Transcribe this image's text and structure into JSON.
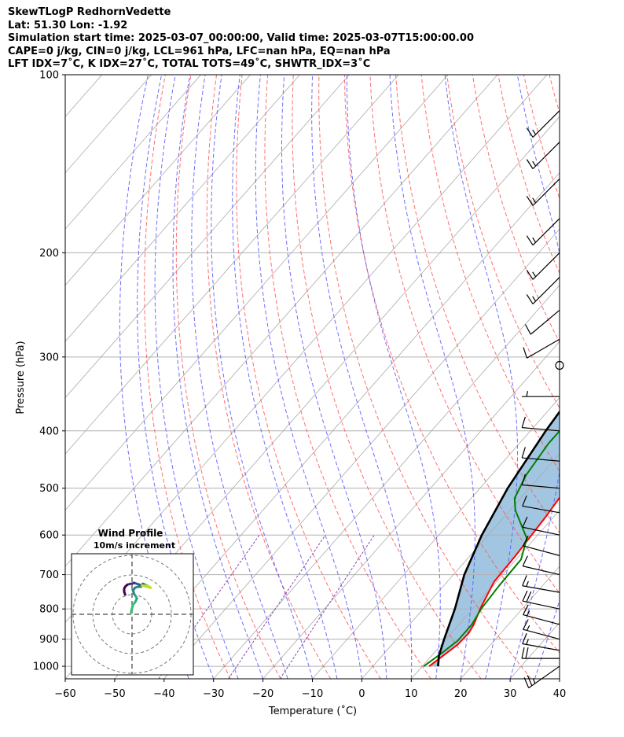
{
  "header": {
    "line1": "SkewTLogP RedhornVedette",
    "line2": "Lat: 51.30   Lon: -1.92",
    "line3": "Simulation start time: 2025-03-07_00:00:00, Valid time: 2025-03-07T15:00:00.00",
    "line4": "CAPE=0 j/kg, CIN=0 j/kg, LCL=961 hPa, LFC=nan hPa, EQ=nan hPa",
    "line5": "LFT IDX=7˚C, K IDX=27˚C, TOTAL TOTS=49˚C, SHWTR_IDX=3˚C"
  },
  "chart_data": {
    "type": "line",
    "xlabel": "Temperature (˚C)",
    "ylabel": "Pressure (hPa)",
    "xlim": [
      -60,
      40
    ],
    "ylim": [
      1040,
      100
    ],
    "x_ticks": [
      -60,
      -50,
      -40,
      -30,
      -20,
      -10,
      0,
      10,
      20,
      30,
      40
    ],
    "x_tick_labels": [
      "−60",
      "−50",
      "−40",
      "−30",
      "−20",
      "−10",
      "0",
      "10",
      "20",
      "30",
      "40"
    ],
    "y_ticks": [
      100,
      200,
      300,
      400,
      500,
      600,
      700,
      800,
      900,
      1000
    ],
    "y_tick_labels": [
      "100",
      "200",
      "300",
      "400",
      "500",
      "600",
      "700",
      "800",
      "900",
      "1000"
    ],
    "skew": "skew-T log-P",
    "grid": true,
    "colors": {
      "temperature": "#ff0000",
      "dewpoint": "#008000",
      "parcel": "#000000",
      "cape_fill": "#7aaed4",
      "dry_adiabat": "#ff5555",
      "moist_adiabat": "#5555ff",
      "mixing_ratio": "#8e44ad",
      "isotherm": "#aaaaaa",
      "barb": "#000000"
    },
    "series": [
      {
        "key": "temperature",
        "points": [
          [
            11.4,
            100
          ],
          [
            10.4,
            120
          ],
          [
            8.7,
            145
          ],
          [
            5.9,
            165
          ],
          [
            3.0,
            185
          ],
          [
            -1.2,
            200
          ],
          [
            -3.8,
            212
          ],
          [
            -5.6,
            232
          ],
          [
            -6.3,
            263
          ],
          [
            -4.8,
            292
          ],
          [
            -2.0,
            335
          ],
          [
            0.0,
            372
          ],
          [
            2.5,
            410
          ],
          [
            5.5,
            460
          ],
          [
            7.5,
            500
          ],
          [
            8.4,
            560
          ],
          [
            9.2,
            650
          ],
          [
            9.5,
            720
          ],
          [
            11.5,
            800
          ],
          [
            13.0,
            850
          ],
          [
            13.5,
            880
          ],
          [
            13.3,
            920
          ],
          [
            11.4,
            1000
          ]
        ]
      },
      {
        "key": "dewpoint",
        "points": [
          [
            -10.3,
            100
          ],
          [
            -21.0,
            135
          ],
          [
            -24.5,
            168
          ],
          [
            -22.5,
            178
          ],
          [
            -17.5,
            193
          ],
          [
            -14.0,
            210
          ],
          [
            -14.5,
            228
          ],
          [
            -14.2,
            252
          ],
          [
            -10.4,
            290
          ],
          [
            -6.9,
            330
          ],
          [
            -4.0,
            372
          ],
          [
            -4.1,
            420
          ],
          [
            -3.0,
            475
          ],
          [
            -1.2,
            520
          ],
          [
            1.1,
            545
          ],
          [
            8.4,
            608
          ],
          [
            11.0,
            660
          ],
          [
            11.2,
            730
          ],
          [
            11.7,
            800
          ],
          [
            12.6,
            850
          ],
          [
            12.6,
            905
          ],
          [
            11.6,
            950
          ],
          [
            10.3,
            1000
          ]
        ]
      },
      {
        "key": "parcel",
        "points": [
          [
            -11.4,
            100
          ],
          [
            -11.2,
            150
          ],
          [
            -10.4,
            200
          ],
          [
            -9.2,
            300
          ],
          [
            -6.9,
            400
          ],
          [
            -4.4,
            500
          ],
          [
            -1.3,
            600
          ],
          [
            2.2,
            700
          ],
          [
            6.4,
            800
          ],
          [
            9.6,
            900
          ],
          [
            11.5,
            960
          ],
          [
            13.2,
            1000
          ]
        ]
      }
    ],
    "wind_barbs": [
      {
        "p": 1000,
        "speed_kt": 25,
        "dir_deg": 235
      },
      {
        "p": 970,
        "speed_kt": 20,
        "dir_deg": 270
      },
      {
        "p": 940,
        "speed_kt": 15,
        "dir_deg": 280
      },
      {
        "p": 900,
        "speed_kt": 15,
        "dir_deg": 285
      },
      {
        "p": 850,
        "speed_kt": 15,
        "dir_deg": 285
      },
      {
        "p": 800,
        "speed_kt": 20,
        "dir_deg": 282
      },
      {
        "p": 750,
        "speed_kt": 15,
        "dir_deg": 280
      },
      {
        "p": 700,
        "speed_kt": 10,
        "dir_deg": 283
      },
      {
        "p": 650,
        "speed_kt": 10,
        "dir_deg": 285
      },
      {
        "p": 600,
        "speed_kt": 10,
        "dir_deg": 282
      },
      {
        "p": 550,
        "speed_kt": 10,
        "dir_deg": 280
      },
      {
        "p": 500,
        "speed_kt": 10,
        "dir_deg": 275
      },
      {
        "p": 450,
        "speed_kt": 10,
        "dir_deg": 275
      },
      {
        "p": 400,
        "speed_kt": 10,
        "dir_deg": 275
      },
      {
        "p": 350,
        "speed_kt": 5,
        "dir_deg": 270
      },
      {
        "p": 310,
        "speed_kt": 0,
        "dir_deg": 0
      },
      {
        "p": 280,
        "speed_kt": 10,
        "dir_deg": 240
      },
      {
        "p": 250,
        "speed_kt": 10,
        "dir_deg": 230
      },
      {
        "p": 220,
        "speed_kt": 15,
        "dir_deg": 225
      },
      {
        "p": 200,
        "speed_kt": 15,
        "dir_deg": 225
      },
      {
        "p": 175,
        "speed_kt": 15,
        "dir_deg": 225
      },
      {
        "p": 150,
        "speed_kt": 15,
        "dir_deg": 225
      },
      {
        "p": 130,
        "speed_kt": 15,
        "dir_deg": 225
      },
      {
        "p": 115,
        "speed_kt": 15,
        "dir_deg": 225
      }
    ],
    "hodograph": {
      "title": "Wind Profile",
      "subtitle": "10m/s increment",
      "ring_increment_ms": 10,
      "max_ms": 25,
      "uv": [
        [
          -0.5,
          1
        ],
        [
          0,
          3
        ],
        [
          0.5,
          5
        ],
        [
          1.5,
          6
        ],
        [
          2,
          7
        ],
        [
          2.5,
          8
        ],
        [
          2,
          9
        ],
        [
          1,
          10.5
        ],
        [
          0.5,
          12
        ],
        [
          1.5,
          13.5
        ],
        [
          3,
          14
        ],
        [
          4.5,
          14
        ],
        [
          5.5,
          15.5
        ],
        [
          7,
          15
        ],
        [
          8,
          14.5
        ],
        [
          9,
          14
        ],
        [
          9.5,
          13.5
        ],
        [
          4,
          15
        ],
        [
          1,
          16
        ],
        [
          0,
          15.5
        ],
        [
          -1,
          15.5
        ],
        [
          -2.5,
          15
        ],
        [
          -3.5,
          14
        ],
        [
          -4,
          13
        ],
        [
          -4,
          11.5
        ],
        [
          -3.5,
          10
        ]
      ]
    }
  }
}
